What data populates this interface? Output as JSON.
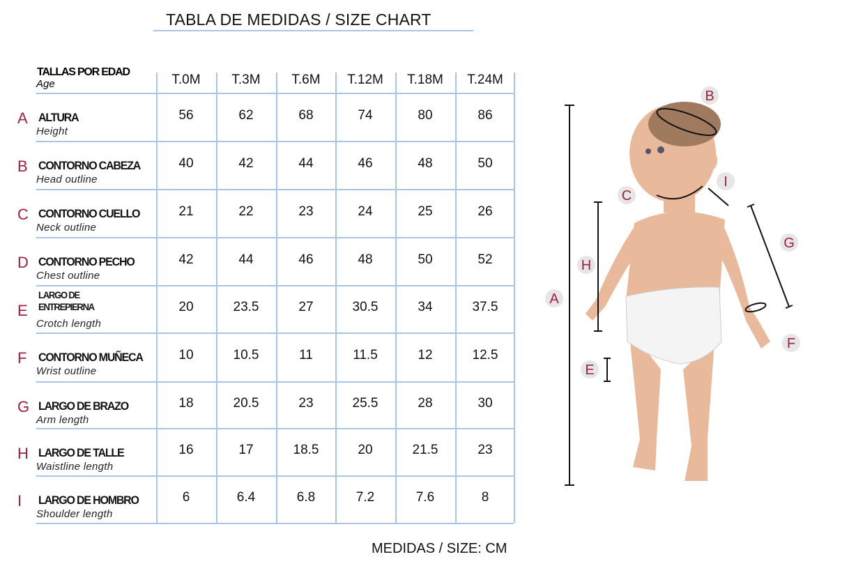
{
  "title": "TABLA DE MEDIDAS / SIZE CHART",
  "footer": "MEDIDAS / SIZE: CM",
  "header": {
    "label_es": "TALLAS POR EDAD",
    "label_en": "Age",
    "sizes": [
      "T.0M",
      "T.3M",
      "T.6M",
      "T.12M",
      "T.18M",
      "T.24M"
    ]
  },
  "rows": [
    {
      "letter": "A",
      "es": "ALTURA",
      "en": "Height",
      "values": [
        "56",
        "62",
        "68",
        "74",
        "80",
        "86"
      ]
    },
    {
      "letter": "B",
      "es": "CONTORNO CABEZA",
      "en": "Head outline",
      "values": [
        "40",
        "42",
        "44",
        "46",
        "48",
        "50"
      ]
    },
    {
      "letter": "C",
      "es": "CONTORNO CUELLO",
      "en": "Neck outline",
      "values": [
        "21",
        "22",
        "23",
        "24",
        "25",
        "26"
      ]
    },
    {
      "letter": "D",
      "es": "CONTORNO PECHO",
      "en": "Chest outline",
      "values": [
        "42",
        "44",
        "46",
        "48",
        "50",
        "52"
      ]
    },
    {
      "letter": "E",
      "es": "LARGO DE ENTREPIERNA",
      "es_lines": [
        "LARGO DE",
        "ENTREPIERNA"
      ],
      "en": "Crotch length",
      "values": [
        "20",
        "23.5",
        "27",
        "30.5",
        "34",
        "37.5"
      ]
    },
    {
      "letter": "F",
      "es": "CONTORNO MUÑECA",
      "en": "Wrist outline",
      "values": [
        "10",
        "10.5",
        "11",
        "11.5",
        "12",
        "12.5"
      ]
    },
    {
      "letter": "G",
      "es": "LARGO DE BRAZO",
      "en": "Arm length",
      "values": [
        "18",
        "20.5",
        "23",
        "25.5",
        "28",
        "30"
      ]
    },
    {
      "letter": "H",
      "es": "LARGO DE TALLE",
      "en": "Waistline length",
      "values": [
        "16",
        "17",
        "18.5",
        "20",
        "21.5",
        "23"
      ]
    },
    {
      "letter": "I",
      "es": "LARGO DE HOMBRO",
      "en": "Shoulder length",
      "values": [
        "6",
        "6.4",
        "6.8",
        "7.2",
        "7.6",
        "8"
      ]
    }
  ],
  "figure": {
    "markers": [
      "A",
      "B",
      "C",
      "E",
      "F",
      "G",
      "H",
      "I"
    ]
  },
  "colors": {
    "letter": "#a0203f",
    "grid": "#a9c4e4",
    "badge": "#e6e6e6",
    "skin": "#e8b99a"
  }
}
